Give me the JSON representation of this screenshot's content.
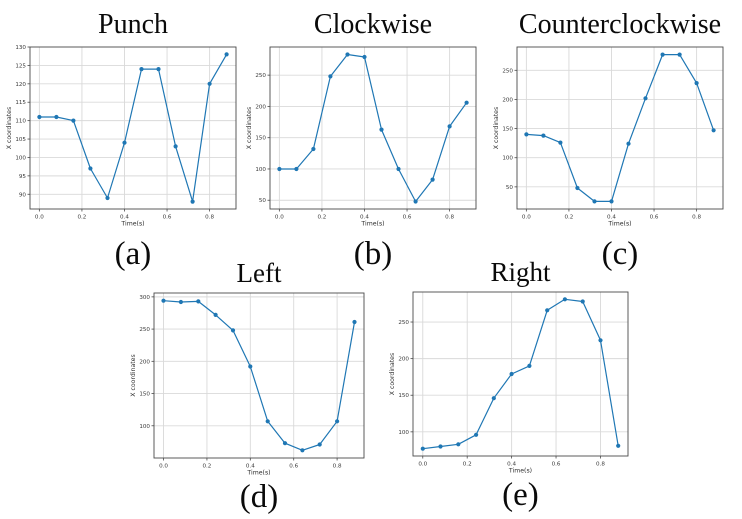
{
  "figure": {
    "line_color": "#1f77b4",
    "grid_color": "#d9d9d9",
    "spine_color": "#4a4a4a",
    "tick_text_color": "#3a3a3a",
    "background_color": "#ffffff"
  },
  "chart_data": [
    {
      "type": "line",
      "title": "Punch",
      "caption": "(a)",
      "xlabel": "Time(s)",
      "ylabel": "X coordinates",
      "x": [
        0.0,
        0.08,
        0.16,
        0.24,
        0.32,
        0.4,
        0.48,
        0.56,
        0.64,
        0.72,
        0.8,
        0.88
      ],
      "values": [
        111,
        111,
        110,
        97,
        89,
        104,
        124,
        124,
        103,
        88,
        120,
        128
      ],
      "xticks": [
        "0.0",
        "0.2",
        "0.4",
        "0.6",
        "0.8"
      ],
      "yticks": [
        90,
        95,
        100,
        105,
        110,
        115,
        120,
        125,
        130
      ],
      "xlim": [
        -0.044,
        0.924
      ],
      "ylim": [
        86,
        130
      ],
      "grid": true,
      "legend": "none",
      "marker": "circle"
    },
    {
      "type": "line",
      "title": "Clockwise",
      "caption": "(b)",
      "xlabel": "Time(s)",
      "ylabel": "X coordinates",
      "x": [
        0.0,
        0.08,
        0.16,
        0.24,
        0.32,
        0.4,
        0.48,
        0.56,
        0.64,
        0.72,
        0.8,
        0.88
      ],
      "values": [
        100,
        100,
        132,
        248,
        283,
        279,
        163,
        100,
        48,
        83,
        168,
        206
      ],
      "xticks": [
        "0.0",
        "0.2",
        "0.4",
        "0.6",
        "0.8"
      ],
      "yticks": [
        50,
        100,
        150,
        200,
        250
      ],
      "xlim": [
        -0.044,
        0.924
      ],
      "ylim": [
        36,
        295
      ],
      "grid": true,
      "legend": "none",
      "marker": "circle"
    },
    {
      "type": "line",
      "title": "Counterclockwise",
      "caption": "(c)",
      "xlabel": "Time(s)",
      "ylabel": "X coordinates",
      "x": [
        0.0,
        0.08,
        0.16,
        0.24,
        0.32,
        0.4,
        0.48,
        0.56,
        0.64,
        0.72,
        0.8,
        0.88
      ],
      "values": [
        140,
        138,
        126,
        48,
        25,
        25,
        124,
        202,
        277,
        277,
        228,
        147
      ],
      "xticks": [
        "0.0",
        "0.2",
        "0.4",
        "0.6",
        "0.8"
      ],
      "yticks": [
        50,
        100,
        150,
        200,
        250
      ],
      "xlim": [
        -0.044,
        0.924
      ],
      "ylim": [
        12,
        290
      ],
      "grid": true,
      "legend": "none",
      "marker": "circle"
    },
    {
      "type": "line",
      "title": "Left",
      "caption": "(d)",
      "xlabel": "Time(s)",
      "ylabel": "X coordinates",
      "x": [
        0.0,
        0.08,
        0.16,
        0.24,
        0.32,
        0.4,
        0.48,
        0.56,
        0.64,
        0.72,
        0.8,
        0.88
      ],
      "values": [
        294,
        292,
        293,
        272,
        248,
        192,
        107,
        73,
        62,
        71,
        107,
        261
      ],
      "xticks": [
        "0.0",
        "0.2",
        "0.4",
        "0.6",
        "0.8"
      ],
      "yticks": [
        100,
        150,
        200,
        250,
        300
      ],
      "xlim": [
        -0.044,
        0.924
      ],
      "ylim": [
        50,
        306
      ],
      "grid": true,
      "legend": "none",
      "marker": "circle"
    },
    {
      "type": "line",
      "title": "Right",
      "caption": "(e)",
      "xlabel": "Time(s)",
      "ylabel": "X coordinates",
      "x": [
        0.0,
        0.08,
        0.16,
        0.24,
        0.32,
        0.4,
        0.48,
        0.56,
        0.64,
        0.72,
        0.8,
        0.88
      ],
      "values": [
        77,
        80,
        83,
        96,
        146,
        179,
        190,
        266,
        281,
        278,
        225,
        81
      ],
      "xticks": [
        "0.0",
        "0.2",
        "0.4",
        "0.6",
        "0.8"
      ],
      "yticks": [
        100,
        150,
        200,
        250
      ],
      "xlim": [
        -0.044,
        0.924
      ],
      "ylim": [
        67,
        291
      ],
      "grid": true,
      "legend": "none",
      "marker": "circle"
    }
  ]
}
